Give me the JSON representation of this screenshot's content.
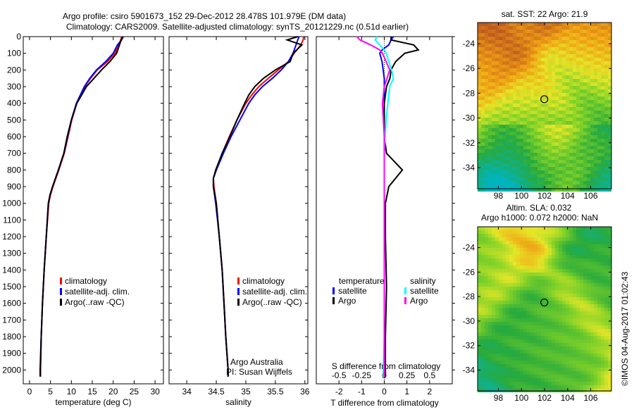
{
  "header": {
    "title1": "Argo profile: csiro 5901673_152 29-Dec-2012 28.478S 101.979E (DM data)",
    "title2": "Climatology: CARS2009. Satellite-adjusted climatology: synTS_20121229.nc (0.51d earlier)"
  },
  "colors": {
    "clim": "#ff0000",
    "sat": "#0000ff",
    "argo": "#000000",
    "sal_sat": "#00ffff",
    "sal_argo": "#ff00ff"
  },
  "chart_data": [
    {
      "type": "line",
      "id": "temperature",
      "xlabel": "temperature (deg C)",
      "ylabel": "",
      "xlim": [
        -1.5,
        32
      ],
      "ylim": [
        2083,
        0
      ],
      "xticks": [
        0,
        5,
        10,
        15,
        20,
        25,
        30
      ],
      "yticks": [
        0,
        100,
        200,
        300,
        400,
        500,
        600,
        700,
        800,
        900,
        1000,
        1100,
        1200,
        1300,
        1400,
        1500,
        1600,
        1700,
        1800,
        1900,
        2000
      ],
      "legend": [
        "climatology",
        "satellite-adj. clim.",
        "Argo(..raw -QC)"
      ],
      "depth": [
        0,
        20,
        50,
        100,
        150,
        200,
        250,
        300,
        400,
        500,
        600,
        700,
        800,
        900,
        950,
        1000,
        1200,
        1400,
        1600,
        1800,
        2000,
        2040
      ],
      "series": [
        {
          "name": "climatology",
          "values": [
            22,
            21.8,
            21.3,
            20.4,
            18.6,
            16.2,
            14.6,
            13.2,
            11.3,
            10.1,
            9.2,
            8.3,
            7.0,
            5.6,
            5.0,
            4.6,
            4.0,
            3.5,
            3.1,
            2.8,
            2.5,
            2.5
          ]
        },
        {
          "name": "satellite-adj. clim.",
          "values": [
            22.4,
            22.0,
            21.0,
            20.0,
            18.2,
            16.0,
            14.4,
            13.1,
            11.2,
            10.0,
            9.1,
            8.2,
            6.9,
            5.5,
            4.9,
            4.5,
            4.0,
            3.5,
            3.1,
            2.8,
            2.6,
            2.6
          ]
        },
        {
          "name": "Argo(..raw -QC)",
          "values": [
            22.3,
            21.9,
            21.5,
            20.8,
            19.2,
            17.2,
            15.4,
            13.6,
            11.3,
            10.0,
            9.0,
            8.2,
            6.9,
            5.5,
            4.9,
            4.5,
            4.0,
            3.5,
            3.1,
            2.8,
            2.6,
            2.6
          ]
        }
      ]
    },
    {
      "type": "line",
      "id": "salinity",
      "xlabel": "salinity",
      "xlim": [
        33.7,
        36.05
      ],
      "ylim": [
        2083,
        0
      ],
      "xticks": [
        34,
        34.5,
        35,
        35.5,
        36
      ],
      "legend": [
        "climatology",
        "satellite-adj. clim.",
        "Argo(..raw -QC)"
      ],
      "annotation": [
        "Argo Australia",
        "PI: Susan Wijffels"
      ],
      "depth": [
        0,
        20,
        50,
        100,
        150,
        200,
        250,
        300,
        350,
        400,
        500,
        600,
        700,
        800,
        850,
        900,
        1000,
        1200,
        1400,
        1600,
        1800,
        2000,
        2040
      ],
      "series": [
        {
          "name": "climatology",
          "values": [
            35.98,
            35.97,
            35.93,
            35.82,
            35.72,
            35.55,
            35.38,
            35.22,
            35.1,
            35.0,
            34.85,
            34.72,
            34.6,
            34.5,
            34.45,
            34.46,
            34.5,
            34.55,
            34.6,
            34.63,
            34.66,
            34.7,
            34.7
          ]
        },
        {
          "name": "satellite-adj. clim.",
          "values": [
            35.9,
            35.88,
            35.85,
            35.8,
            35.72,
            35.6,
            35.45,
            35.28,
            35.15,
            35.05,
            34.9,
            34.75,
            34.62,
            34.5,
            34.45,
            34.45,
            34.49,
            34.55,
            34.6,
            34.63,
            34.66,
            34.7,
            34.7
          ]
        },
        {
          "name": "Argo(..raw -QC)",
          "values": [
            35.88,
            35.7,
            35.95,
            35.8,
            35.75,
            35.5,
            35.3,
            35.15,
            35.05,
            34.98,
            34.85,
            34.73,
            34.6,
            34.49,
            34.45,
            34.45,
            34.5,
            34.55,
            34.6,
            34.63,
            34.66,
            34.7,
            34.7
          ]
        }
      ]
    },
    {
      "type": "line",
      "id": "differences",
      "xlabel": "T difference from climatology",
      "x2label": "S difference from climatology",
      "xlim": [
        -3,
        3
      ],
      "x2lim": [
        -0.75,
        0.75
      ],
      "xticks": [
        -2,
        -1,
        0,
        1,
        2
      ],
      "x2ticks": [
        -0.5,
        -0.25,
        0,
        0.25,
        0.5
      ],
      "x2ticklabels": [
        "-0.5",
        "-0.25",
        "0",
        "0.25",
        "0.5"
      ],
      "legend_t_title": "temperature",
      "legend_s_title": "salinity",
      "legend": [
        "satellite",
        "Argo",
        "satellite",
        "Argo"
      ],
      "depth": [
        0,
        20,
        50,
        80,
        100,
        150,
        200,
        250,
        300,
        400,
        500,
        600,
        700,
        800,
        900,
        1000,
        1200,
        1500,
        1800,
        2000,
        2040
      ],
      "series": [
        {
          "name": "T satellite",
          "values": [
            0.4,
            0.3,
            0.2,
            -0.1,
            -0.2,
            -0.1,
            -0.05,
            0,
            0,
            0,
            0,
            0,
            0,
            0,
            0,
            0,
            0,
            0,
            0,
            0,
            0
          ]
        },
        {
          "name": "T Argo",
          "values": [
            0.3,
            0.3,
            1.3,
            1.5,
            0.9,
            0.5,
            0.3,
            0.25,
            0.1,
            0,
            0,
            0,
            0.1,
            0.8,
            0.2,
            0.05,
            0.05,
            0.1,
            0.05,
            0.05,
            0.05
          ]
        },
        {
          "name": "S satellite",
          "values": [
            -0.08,
            -0.1,
            -0.05,
            0,
            0.02,
            0.05,
            0.08,
            0.1,
            0.06,
            0.04,
            0.02,
            0.01,
            0,
            0,
            0,
            0,
            0,
            0,
            0,
            -0.01,
            -0.01
          ]
        },
        {
          "name": "S Argo",
          "values": [
            -0.3,
            -0.27,
            -0.15,
            -0.05,
            -0.02,
            0.02,
            0.06,
            0.03,
            0.0,
            -0.02,
            -0.01,
            0,
            0,
            0,
            0,
            0,
            0,
            0,
            0,
            0,
            0
          ]
        }
      ]
    },
    {
      "type": "heatmap",
      "id": "sst-map",
      "title": "sat. SST: 22 Argo: 21.9",
      "xticks": [
        98,
        100,
        102,
        104,
        106
      ],
      "yticks": [
        -24,
        -26,
        -28,
        -30,
        -32,
        -34
      ],
      "xlim": [
        96.2,
        107.8
      ],
      "ylim": [
        -35.7,
        -22.3
      ],
      "marker": [
        101.979,
        -28.478
      ]
    },
    {
      "type": "heatmap",
      "id": "sla-map",
      "title": "Altim. SLA: 0.032",
      "subtitle": "Argo h1000: 0.072 h2000: NaN",
      "xticks": [
        98,
        100,
        102,
        104,
        106
      ],
      "yticks": [
        -24,
        -26,
        -28,
        -30,
        -32,
        -34
      ],
      "xlim": [
        96.2,
        107.8
      ],
      "ylim": [
        -35.7,
        -22.3
      ],
      "marker": [
        101.979,
        -28.478
      ]
    }
  ],
  "footer": {
    "credit": "©IMOS 04-Aug-2017 01:02:43"
  }
}
